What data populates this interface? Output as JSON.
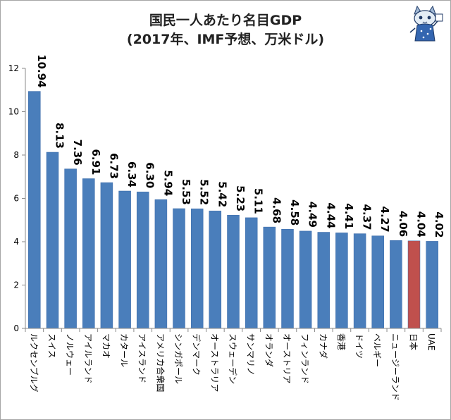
{
  "title_line1": "国民一人あたり名目GDP",
  "title_line2": "(2017年、IMF予想、万米ドル)",
  "colors": {
    "bar": "#4a7ebb",
    "highlight": "#c0504d",
    "axis": "#888888",
    "text": "#000000"
  },
  "chart_data": {
    "type": "bar",
    "title": "国民一人あたり名目GDP (2017年、IMF予想、万米ドル)",
    "xlabel": "",
    "ylabel": "",
    "ylim": [
      0,
      12
    ],
    "yticks": [
      0,
      2,
      4,
      6,
      8,
      10,
      12
    ],
    "grid": false,
    "categories": [
      "ルクセンブルグ",
      "スイス",
      "ノルウェー",
      "アイルランド",
      "マカオ",
      "カタール",
      "アイスランド",
      "アメリカ合衆国",
      "シンガポール",
      "デンマーク",
      "オーストラリア",
      "スウェーデン",
      "サンマリノ",
      "オランダ",
      "オーストリア",
      "フィンランド",
      "カナダ",
      "香港",
      "ドイツ",
      "ベルギー",
      "ニュージーランド",
      "日本",
      "UAE"
    ],
    "values": [
      10.94,
      8.13,
      7.36,
      6.91,
      6.73,
      6.34,
      6.3,
      5.94,
      5.53,
      5.52,
      5.42,
      5.23,
      5.11,
      4.68,
      4.58,
      4.49,
      4.44,
      4.41,
      4.37,
      4.27,
      4.06,
      4.04,
      4.02
    ],
    "value_labels": [
      "10.94",
      "8.13",
      "7.36",
      "6.91",
      "6.73",
      "6.34",
      "6.30",
      "5.94",
      "5.53",
      "5.52",
      "5.42",
      "5.23",
      "5.11",
      "4.68",
      "4.58",
      "4.49",
      "4.44",
      "4.41",
      "4.37",
      "4.27",
      "4.06",
      "4.04",
      "4.02"
    ],
    "highlight_category": "日本"
  }
}
